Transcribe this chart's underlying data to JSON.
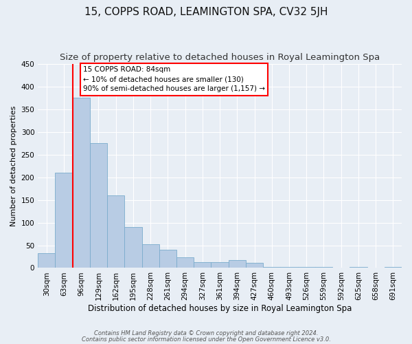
{
  "title": "15, COPPS ROAD, LEAMINGTON SPA, CV32 5JH",
  "subtitle": "Size of property relative to detached houses in Royal Leamington Spa",
  "xlabel": "Distribution of detached houses by size in Royal Leamington Spa",
  "ylabel": "Number of detached properties",
  "categories": [
    "30sqm",
    "63sqm",
    "96sqm",
    "129sqm",
    "162sqm",
    "195sqm",
    "228sqm",
    "261sqm",
    "294sqm",
    "327sqm",
    "361sqm",
    "394sqm",
    "427sqm",
    "460sqm",
    "493sqm",
    "526sqm",
    "559sqm",
    "592sqm",
    "625sqm",
    "658sqm",
    "691sqm"
  ],
  "values": [
    33,
    210,
    375,
    275,
    160,
    90,
    52,
    40,
    24,
    13,
    13,
    17,
    11,
    2,
    2,
    2,
    2,
    0,
    2,
    0,
    2
  ],
  "bar_color": "#b8cce4",
  "bar_edge_color": "#7aabcc",
  "vline_color": "red",
  "vline_linewidth": 1.5,
  "vline_index": 1.5,
  "ylim": [
    0,
    450
  ],
  "yticks": [
    0,
    50,
    100,
    150,
    200,
    250,
    300,
    350,
    400,
    450
  ],
  "annotation_title": "15 COPPS ROAD: 84sqm",
  "annotation_line1": "← 10% of detached houses are smaller (130)",
  "annotation_line2": "90% of semi-detached houses are larger (1,157) →",
  "annotation_box_color": "#ffffff",
  "annotation_box_edge": "red",
  "footnote1": "Contains HM Land Registry data © Crown copyright and database right 2024.",
  "footnote2": "Contains public sector information licensed under the Open Government Licence v3.0.",
  "bg_color": "#e8eef5",
  "plot_bg_color": "#e8eef5",
  "grid_color": "#ffffff",
  "title_fontsize": 11,
  "subtitle_fontsize": 9.5,
  "xlabel_fontsize": 8.5,
  "ylabel_fontsize": 8,
  "tick_fontsize": 7.5,
  "annotation_fontsize": 7.5
}
